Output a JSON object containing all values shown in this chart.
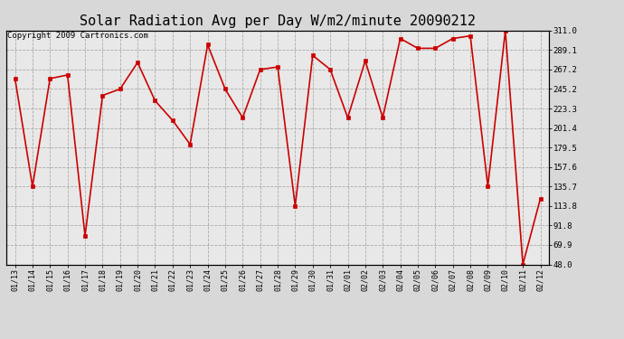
{
  "title": "Solar Radiation Avg per Day W/m2/minute 20090212",
  "copyright": "Copyright 2009 Cartronics.com",
  "dates": [
    "01/13",
    "01/14",
    "01/15",
    "01/16",
    "01/17",
    "01/18",
    "01/19",
    "01/20",
    "01/21",
    "01/22",
    "01/23",
    "01/24",
    "01/25",
    "01/26",
    "01/27",
    "01/28",
    "01/29",
    "01/30",
    "01/31",
    "02/01",
    "02/02",
    "02/03",
    "02/04",
    "02/05",
    "02/06",
    "02/07",
    "02/08",
    "02/09",
    "02/10",
    "02/11",
    "02/12"
  ],
  "values": [
    257.0,
    135.7,
    257.0,
    261.0,
    80.0,
    238.0,
    245.2,
    275.0,
    232.0,
    210.0,
    183.0,
    295.0,
    245.2,
    213.0,
    267.2,
    270.0,
    113.8,
    283.0,
    267.2,
    213.0,
    277.0,
    213.0,
    302.0,
    291.0,
    291.0,
    302.0,
    305.0,
    135.7,
    311.0,
    48.0,
    122.0
  ],
  "line_color": "#cc0000",
  "marker_color": "#cc0000",
  "bg_color": "#d8d8d8",
  "plot_bg_color": "#e8e8e8",
  "grid_color": "#aaaaaa",
  "yticks": [
    48.0,
    69.9,
    91.8,
    113.8,
    135.7,
    157.6,
    179.5,
    201.4,
    223.3,
    245.2,
    267.2,
    289.1,
    311.0
  ],
  "ymin": 48.0,
  "ymax": 311.0,
  "title_fontsize": 11,
  "copyright_fontsize": 6.5,
  "figwidth": 6.9,
  "figheight": 3.75,
  "dpi": 100
}
